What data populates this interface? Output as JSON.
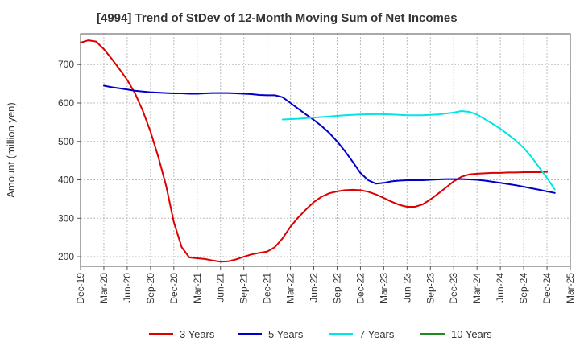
{
  "chart_data": {
    "type": "line",
    "title": "[4994]  Trend of StDev of 12-Month Moving Sum of Net Incomes",
    "xlabel": "",
    "ylabel": "Amount (million yen)",
    "ylim": [
      175,
      780
    ],
    "yticks": [
      200,
      300,
      400,
      500,
      600,
      700
    ],
    "xlim": [
      "2019-12",
      "2025-03"
    ],
    "xticks": [
      "Dec-19",
      "Mar-20",
      "Jun-20",
      "Sep-20",
      "Dec-20",
      "Mar-21",
      "Jun-21",
      "Sep-21",
      "Dec-21",
      "Mar-22",
      "Jun-22",
      "Sep-22",
      "Dec-22",
      "Mar-23",
      "Jun-23",
      "Sep-23",
      "Dec-23",
      "Mar-24",
      "Jun-24",
      "Sep-24",
      "Dec-24",
      "Mar-25"
    ],
    "grid": true,
    "legend_position": "bottom",
    "series": [
      {
        "name": "3 Years",
        "color": "#dd0000",
        "points": [
          [
            "2019-12",
            757
          ],
          [
            "2020-01",
            763
          ],
          [
            "2020-02",
            760
          ],
          [
            "2020-03",
            740
          ],
          [
            "2020-04",
            715
          ],
          [
            "2020-05",
            688
          ],
          [
            "2020-06",
            660
          ],
          [
            "2020-07",
            625
          ],
          [
            "2020-08",
            580
          ],
          [
            "2020-09",
            525
          ],
          [
            "2020-10",
            460
          ],
          [
            "2020-11",
            385
          ],
          [
            "2020-12",
            290
          ],
          [
            "2021-01",
            225
          ],
          [
            "2021-02",
            198
          ],
          [
            "2021-03",
            196
          ],
          [
            "2021-04",
            194
          ],
          [
            "2021-05",
            190
          ],
          [
            "2021-06",
            187
          ],
          [
            "2021-07",
            188
          ],
          [
            "2021-08",
            193
          ],
          [
            "2021-09",
            200
          ],
          [
            "2021-10",
            206
          ],
          [
            "2021-11",
            210
          ],
          [
            "2021-12",
            213
          ],
          [
            "2022-01",
            225
          ],
          [
            "2022-02",
            248
          ],
          [
            "2022-03",
            278
          ],
          [
            "2022-04",
            302
          ],
          [
            "2022-05",
            323
          ],
          [
            "2022-06",
            342
          ],
          [
            "2022-07",
            356
          ],
          [
            "2022-08",
            365
          ],
          [
            "2022-09",
            370
          ],
          [
            "2022-10",
            373
          ],
          [
            "2022-11",
            374
          ],
          [
            "2022-12",
            373
          ],
          [
            "2023-01",
            369
          ],
          [
            "2023-02",
            362
          ],
          [
            "2023-03",
            353
          ],
          [
            "2023-04",
            343
          ],
          [
            "2023-05",
            335
          ],
          [
            "2023-06",
            330
          ],
          [
            "2023-07",
            330
          ],
          [
            "2023-08",
            336
          ],
          [
            "2023-09",
            349
          ],
          [
            "2023-10",
            364
          ],
          [
            "2023-11",
            380
          ],
          [
            "2023-12",
            396
          ],
          [
            "2024-01",
            408
          ],
          [
            "2024-02",
            414
          ],
          [
            "2024-03",
            416
          ],
          [
            "2024-04",
            417
          ],
          [
            "2024-05",
            418
          ],
          [
            "2024-06",
            418
          ],
          [
            "2024-07",
            419
          ],
          [
            "2024-08",
            419
          ],
          [
            "2024-09",
            420
          ],
          [
            "2024-10",
            420
          ],
          [
            "2024-11",
            420
          ],
          [
            "2024-12",
            421
          ]
        ]
      },
      {
        "name": "5 Years",
        "color": "#0000cc",
        "points": [
          [
            "2020-03",
            645
          ],
          [
            "2020-04",
            641
          ],
          [
            "2020-05",
            638
          ],
          [
            "2020-06",
            635
          ],
          [
            "2020-07",
            632
          ],
          [
            "2020-08",
            630
          ],
          [
            "2020-09",
            628
          ],
          [
            "2020-10",
            627
          ],
          [
            "2020-11",
            626
          ],
          [
            "2020-12",
            625
          ],
          [
            "2021-01",
            625
          ],
          [
            "2021-02",
            624
          ],
          [
            "2021-03",
            624
          ],
          [
            "2021-04",
            625
          ],
          [
            "2021-05",
            626
          ],
          [
            "2021-06",
            626
          ],
          [
            "2021-07",
            626
          ],
          [
            "2021-08",
            625
          ],
          [
            "2021-09",
            624
          ],
          [
            "2021-10",
            623
          ],
          [
            "2021-11",
            621
          ],
          [
            "2021-12",
            620
          ],
          [
            "2022-01",
            620
          ],
          [
            "2022-02",
            615
          ],
          [
            "2022-03",
            600
          ],
          [
            "2022-04",
            585
          ],
          [
            "2022-05",
            570
          ],
          [
            "2022-06",
            556
          ],
          [
            "2022-07",
            540
          ],
          [
            "2022-08",
            522
          ],
          [
            "2022-09",
            500
          ],
          [
            "2022-10",
            475
          ],
          [
            "2022-11",
            447
          ],
          [
            "2022-12",
            418
          ],
          [
            "2023-01",
            399
          ],
          [
            "2023-02",
            390
          ],
          [
            "2023-03",
            392
          ],
          [
            "2023-04",
            396
          ],
          [
            "2023-05",
            398
          ],
          [
            "2023-06",
            399
          ],
          [
            "2023-07",
            399
          ],
          [
            "2023-08",
            399
          ],
          [
            "2023-09",
            400
          ],
          [
            "2023-10",
            401
          ],
          [
            "2023-11",
            402
          ],
          [
            "2023-12",
            402
          ],
          [
            "2024-01",
            402
          ],
          [
            "2024-02",
            401
          ],
          [
            "2024-03",
            400
          ],
          [
            "2024-04",
            398
          ],
          [
            "2024-05",
            395
          ],
          [
            "2024-06",
            392
          ],
          [
            "2024-07",
            389
          ],
          [
            "2024-08",
            386
          ],
          [
            "2024-09",
            382
          ],
          [
            "2024-10",
            378
          ],
          [
            "2024-11",
            374
          ],
          [
            "2024-12",
            370
          ],
          [
            "2025-01",
            366
          ]
        ]
      },
      {
        "name": "7 Years",
        "color": "#00e5e5",
        "points": [
          [
            "2022-02",
            557
          ],
          [
            "2022-04",
            559
          ],
          [
            "2022-06",
            562
          ],
          [
            "2022-08",
            565
          ],
          [
            "2022-10",
            568
          ],
          [
            "2022-12",
            570
          ],
          [
            "2023-02",
            571
          ],
          [
            "2023-04",
            570
          ],
          [
            "2023-06",
            568
          ],
          [
            "2023-08",
            568
          ],
          [
            "2023-10",
            570
          ],
          [
            "2023-12",
            575
          ],
          [
            "2024-01",
            579
          ],
          [
            "2024-02",
            577
          ],
          [
            "2024-03",
            570
          ],
          [
            "2024-04",
            558
          ],
          [
            "2024-05",
            546
          ],
          [
            "2024-06",
            533
          ],
          [
            "2024-07",
            518
          ],
          [
            "2024-08",
            502
          ],
          [
            "2024-09",
            483
          ],
          [
            "2024-10",
            460
          ],
          [
            "2024-11",
            432
          ],
          [
            "2024-12",
            405
          ],
          [
            "2025-01",
            375
          ]
        ]
      },
      {
        "name": "10 Years",
        "color": "#228822",
        "points": []
      }
    ]
  }
}
